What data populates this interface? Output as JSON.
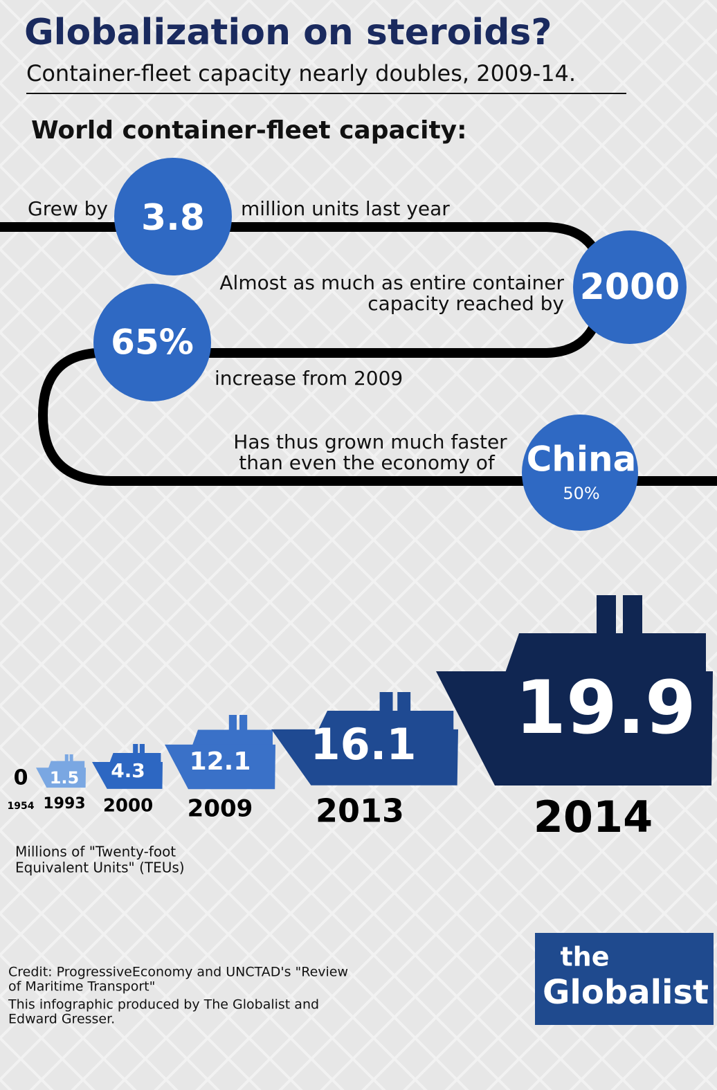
{
  "header": {
    "title": "Globalization on steroids?",
    "subtitle": "Container-fleet capacity nearly doubles, 2009-14."
  },
  "section_title": "World container-fleet capacity:",
  "facts": [
    {
      "before": "Grew by",
      "badge": "3.8",
      "after": "million units last year"
    },
    {
      "lines": [
        "Almost as much as entire container",
        "capacity reached by"
      ],
      "badge": "2000"
    },
    {
      "badge": "65%",
      "after": "increase from 2009"
    },
    {
      "lines": [
        "Has thus grown much faster",
        "than even the economy of"
      ],
      "badge": "China",
      "badge_note": "50%"
    }
  ],
  "ships": [
    {
      "value": 0,
      "year": "1954",
      "color": "#000000"
    },
    {
      "value": 1.5,
      "year": "1993",
      "color": "#7aa7e2"
    },
    {
      "value": 4.3,
      "year": "2000",
      "color": "#2d67c2"
    },
    {
      "value": 12.1,
      "year": "2009",
      "color": "#3a71c8"
    },
    {
      "value": 16.1,
      "year": "2013",
      "color": "#1f4a92"
    },
    {
      "value": 19.9,
      "year": "2014",
      "color": "#102652"
    }
  ],
  "unit_note": [
    "Millions of \"Twenty-foot",
    "Equivalent Units\" (TEUs)"
  ],
  "credits": [
    [
      "Credit: ProgressiveEconomy and UNCTAD's \"Review",
      "of Maritime Transport\""
    ],
    [
      "This infographic produced by The Globalist and",
      "Edward Gresser."
    ]
  ],
  "logo": {
    "line1": "the",
    "line2": "Globalist"
  }
}
